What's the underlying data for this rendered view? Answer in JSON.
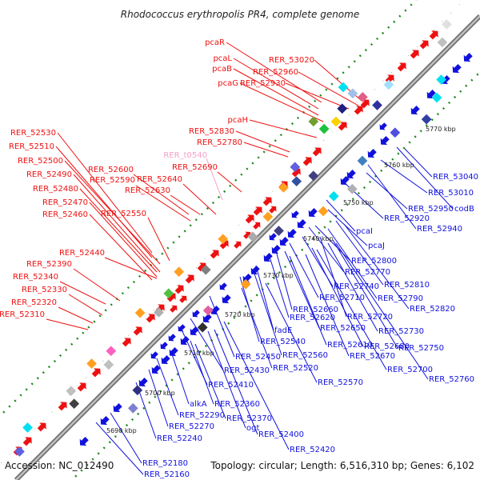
{
  "title": "Rhodococcus erythropolis PR4, complete genome",
  "footer": {
    "accession": "Accession: NC_012490",
    "topology": "Topology: circular; Length: 6,516,310 bp; Genes: 6,102"
  },
  "colors": {
    "forward_strand": "#ee1111",
    "reverse_strand": "#1111dd",
    "gc_dots": "#1f8a1f",
    "backbone": "#888888",
    "pseudo_label": "#f4a0c8"
  },
  "ticks": [
    "5690 kbp",
    "5700 kbp",
    "5710 kbp",
    "5720 kbp",
    "5730 kbp",
    "5740 kbp",
    "5750 kbp",
    "5760 kbp",
    "5770 kbp"
  ],
  "top_labels": [
    {
      "text": "pcaR",
      "color": "red"
    },
    {
      "text": "pcaL",
      "color": "red"
    },
    {
      "text": "pcaB",
      "color": "red"
    },
    {
      "text": "pcaG",
      "color": "red"
    },
    {
      "text": "RER_53020",
      "color": "red"
    },
    {
      "text": "RER_52960",
      "color": "red"
    },
    {
      "text": "RER_52930",
      "color": "red"
    },
    {
      "text": "pcaH",
      "color": "red"
    },
    {
      "text": "RER_52830",
      "color": "red"
    },
    {
      "text": "RER_52780",
      "color": "red"
    },
    {
      "text": "RER_t0540",
      "color": "pink"
    },
    {
      "text": "RER_52530",
      "color": "red"
    },
    {
      "text": "RER_52510",
      "color": "red"
    },
    {
      "text": "RER_52500",
      "color": "red"
    },
    {
      "text": "RER_52490",
      "color": "red"
    },
    {
      "text": "RER_52480",
      "color": "red"
    },
    {
      "text": "RER_52470",
      "color": "red"
    },
    {
      "text": "RER_52460",
      "color": "red"
    },
    {
      "text": "RER_52600",
      "color": "red"
    },
    {
      "text": "RER_52590",
      "color": "red"
    },
    {
      "text": "RER_52630",
      "color": "red"
    },
    {
      "text": "RER_52640",
      "color": "red"
    },
    {
      "text": "RER_52690",
      "color": "red"
    },
    {
      "text": "RER_52550",
      "color": "red"
    },
    {
      "text": "RER_52440",
      "color": "red"
    },
    {
      "text": "RER_52390",
      "color": "red"
    },
    {
      "text": "RER_52340",
      "color": "red"
    },
    {
      "text": "RER_52330",
      "color": "red"
    },
    {
      "text": "RER_52320",
      "color": "red"
    },
    {
      "text": "RER_52310",
      "color": "red"
    }
  ],
  "bottom_labels": [
    {
      "text": "RER_53040"
    },
    {
      "text": "RER_53010"
    },
    {
      "text": "codB"
    },
    {
      "text": "RER_52950"
    },
    {
      "text": "RER_52920"
    },
    {
      "text": "RER_52940"
    },
    {
      "text": "pcaI"
    },
    {
      "text": "pcaJ"
    },
    {
      "text": "RER_52800"
    },
    {
      "text": "RER_52770"
    },
    {
      "text": "RER_52740"
    },
    {
      "text": "RER_52810"
    },
    {
      "text": "RER_52710"
    },
    {
      "text": "RER_52790"
    },
    {
      "text": "RER_52660"
    },
    {
      "text": "RER_52720"
    },
    {
      "text": "RER_52820"
    },
    {
      "text": "RER_52620"
    },
    {
      "text": "fadE"
    },
    {
      "text": "RER_52650"
    },
    {
      "text": "RER_52730"
    },
    {
      "text": "RER_52540"
    },
    {
      "text": "RER_52610"
    },
    {
      "text": "RER_52680"
    },
    {
      "text": "RER_52750"
    },
    {
      "text": "RER_52450"
    },
    {
      "text": "RER_52560"
    },
    {
      "text": "RER_52670"
    },
    {
      "text": "RER_52430"
    },
    {
      "text": "RER_52520"
    },
    {
      "text": "RER_52700"
    },
    {
      "text": "RER_52570"
    },
    {
      "text": "RER_52760"
    },
    {
      "text": "RER_52410"
    },
    {
      "text": "alkA"
    },
    {
      "text": "RER_52360"
    },
    {
      "text": "RER_52290"
    },
    {
      "text": "RER_52370"
    },
    {
      "text": "RER_52270"
    },
    {
      "text": "ogt"
    },
    {
      "text": "RER_52240"
    },
    {
      "text": "RER_52400"
    },
    {
      "text": "RER_52420"
    },
    {
      "text": "RER_52180"
    },
    {
      "text": "RER_52160"
    }
  ]
}
